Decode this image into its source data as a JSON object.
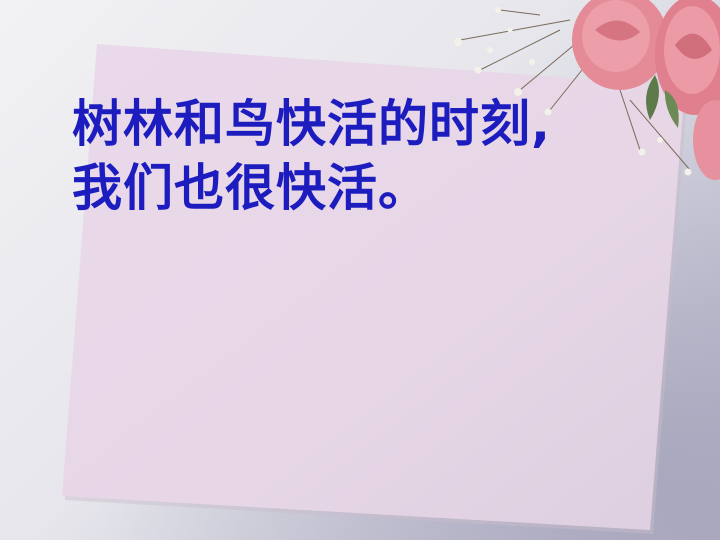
{
  "slide": {
    "lines": [
      "树林和鸟快活的时刻,",
      "我们也很快活。"
    ],
    "text_color": "#1d1dbf",
    "paper_color": "#e6d6e6",
    "background_color": "#e4e4ea",
    "decoration": "pink-roses-and-babys-breath"
  }
}
